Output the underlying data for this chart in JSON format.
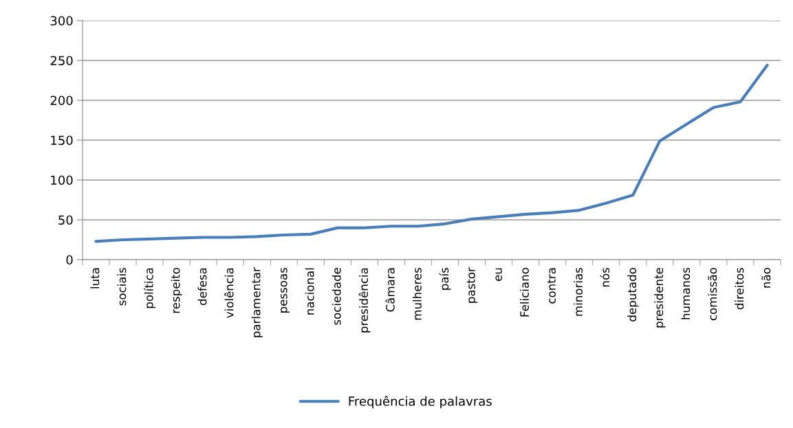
{
  "chart_data": {
    "type": "line",
    "categories": [
      "luta",
      "sociais",
      "política",
      "respeito",
      "defesa",
      "violência",
      "parlamentar",
      "pessoas",
      "nacional",
      "sociedade",
      "presidência",
      "Câmara",
      "mulheres",
      "país",
      "pastor",
      "eu",
      "Feliciano",
      "contra",
      "minorias",
      "nós",
      "deputado",
      "presidente",
      "humanos",
      "comissão",
      "direitos",
      "não"
    ],
    "series": [
      {
        "name": "Frequência de palavras",
        "color": "#4a7ebb",
        "values": [
          23,
          25,
          26,
          27,
          28,
          28,
          29,
          31,
          32,
          40,
          40,
          42,
          42,
          45,
          51,
          54,
          57,
          59,
          62,
          71,
          81,
          149,
          170,
          191,
          198,
          244
        ]
      }
    ],
    "ylim": [
      0,
      300
    ],
    "yticks": [
      0,
      50,
      100,
      150,
      200,
      250,
      300
    ],
    "grid": "y",
    "legend": "bottom",
    "marker": "none",
    "line_style": "solid"
  }
}
